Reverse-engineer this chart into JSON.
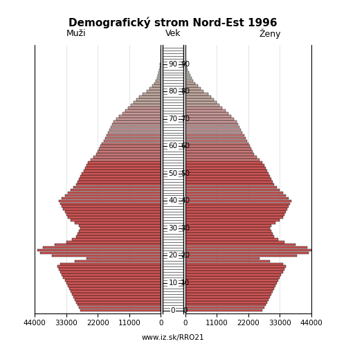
{
  "title": "Demografický strom Nord-Est 1996",
  "label_left": "Muži",
  "label_center": "Vek",
  "label_right": "Ženy",
  "footer": "www.iz.sk/RRO21",
  "xlim": 44000,
  "ages": [
    0,
    1,
    2,
    3,
    4,
    5,
    6,
    7,
    8,
    9,
    10,
    11,
    12,
    13,
    14,
    15,
    16,
    17,
    18,
    19,
    20,
    21,
    22,
    23,
    24,
    25,
    26,
    27,
    28,
    29,
    30,
    31,
    32,
    33,
    34,
    35,
    36,
    37,
    38,
    39,
    40,
    41,
    42,
    43,
    44,
    45,
    46,
    47,
    48,
    49,
    50,
    51,
    52,
    53,
    54,
    55,
    56,
    57,
    58,
    59,
    60,
    61,
    62,
    63,
    64,
    65,
    66,
    67,
    68,
    69,
    70,
    71,
    72,
    73,
    74,
    75,
    76,
    77,
    78,
    79,
    80,
    81,
    82,
    83,
    84,
    85,
    86,
    87,
    88,
    89,
    90,
    91,
    92,
    93,
    94,
    95
  ],
  "males": [
    28000,
    28500,
    29000,
    29500,
    30000,
    30500,
    31000,
    31500,
    32000,
    32500,
    33000,
    33500,
    34000,
    34500,
    35000,
    35500,
    36000,
    35000,
    30000,
    26000,
    38000,
    42000,
    43000,
    41000,
    37000,
    33000,
    31000,
    29500,
    29000,
    28500,
    28000,
    28500,
    30000,
    31500,
    32500,
    33000,
    33500,
    34000,
    34500,
    35000,
    35500,
    34500,
    33500,
    32500,
    31500,
    30500,
    29500,
    29000,
    28500,
    28000,
    27500,
    27000,
    26500,
    26000,
    25500,
    24500,
    23500,
    22500,
    22000,
    21500,
    21000,
    20500,
    20000,
    19500,
    19000,
    18500,
    18000,
    17500,
    17000,
    16500,
    15500,
    14500,
    13500,
    12500,
    11500,
    10500,
    9500,
    8500,
    7500,
    6500,
    5000,
    4000,
    3000,
    2300,
    1800,
    1400,
    1000,
    750,
    550,
    380,
    250,
    170,
    110,
    70,
    40,
    20
  ],
  "females": [
    27000,
    27500,
    28000,
    28500,
    29000,
    29500,
    30000,
    30500,
    31000,
    31500,
    32000,
    32500,
    33000,
    33500,
    34000,
    34500,
    35000,
    34000,
    29500,
    26000,
    39000,
    43000,
    44500,
    42500,
    38500,
    34500,
    32500,
    31000,
    30500,
    30000,
    29500,
    30000,
    31500,
    33000,
    34000,
    34500,
    35000,
    35500,
    36000,
    36500,
    37000,
    36000,
    35000,
    34000,
    33000,
    32000,
    31000,
    30500,
    30000,
    29500,
    29000,
    28500,
    28000,
    27500,
    27000,
    26000,
    25000,
    24000,
    23500,
    23000,
    22500,
    22000,
    21500,
    21000,
    20500,
    20000,
    19500,
    19000,
    18500,
    18000,
    17000,
    16000,
    15000,
    14000,
    13000,
    12000,
    11000,
    10000,
    9000,
    8000,
    6500,
    5500,
    4500,
    3500,
    2800,
    2200,
    1700,
    1300,
    950,
    650,
    430,
    290,
    190,
    120,
    75,
    45
  ],
  "color_breakpoints": [
    55,
    65,
    75,
    85
  ],
  "colors": [
    "#cc5555",
    "#c87878",
    "#c09090",
    "#b8a8a8",
    "#c0c0b8"
  ]
}
